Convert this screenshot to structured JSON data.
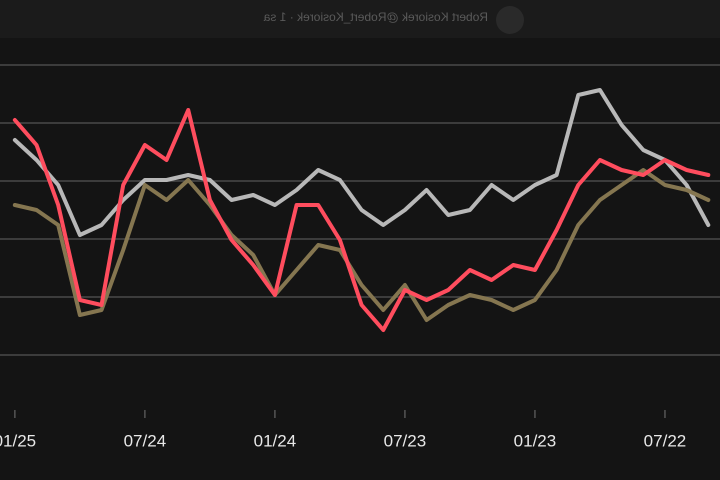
{
  "header": {
    "author": "Robert Kosiorek @Robert_Kosiorek · 1 sa"
  },
  "chart_data": {
    "type": "line",
    "categories": [
      null,
      null,
      "07/22",
      null,
      null,
      null,
      null,
      null,
      "01/23",
      null,
      null,
      null,
      null,
      null,
      "07/23",
      null,
      null,
      null,
      null,
      null,
      "01/24",
      null,
      null,
      null,
      null,
      null,
      "07/24",
      null,
      null,
      null,
      null,
      null,
      "01/25"
    ],
    "series": [
      {
        "color": "#b8b8b8",
        "values": [
          175,
          215,
          240,
          250,
          275,
          310,
          305,
          225,
          215,
          200,
          215,
          190,
          185,
          210,
          190,
          175,
          190,
          220,
          230,
          210,
          195,
          205,
          200,
          220,
          225,
          220,
          220,
          200,
          175,
          165,
          215,
          240,
          260
        ]
      },
      {
        "color": "#857650",
        "values": [
          200,
          210,
          215,
          230,
          215,
          200,
          175,
          130,
          100,
          90,
          100,
          105,
          95,
          80,
          115,
          90,
          115,
          150,
          155,
          130,
          105,
          145,
          165,
          195,
          220,
          200,
          215,
          150,
          90,
          85,
          175,
          190,
          195
        ]
      },
      {
        "color": "#ff4d5e",
        "values": [
          225,
          230,
          240,
          225,
          230,
          240,
          215,
          170,
          130,
          135,
          120,
          130,
          110,
          100,
          110,
          70,
          95,
          160,
          195,
          195,
          105,
          135,
          160,
          200,
          290,
          240,
          255,
          215,
          95,
          100,
          195,
          255,
          280
        ]
      }
    ],
    "ylim": [
      0,
      360
    ],
    "yticks": [
      45,
      103,
      161,
      219,
      277,
      335
    ],
    "grid": true
  }
}
